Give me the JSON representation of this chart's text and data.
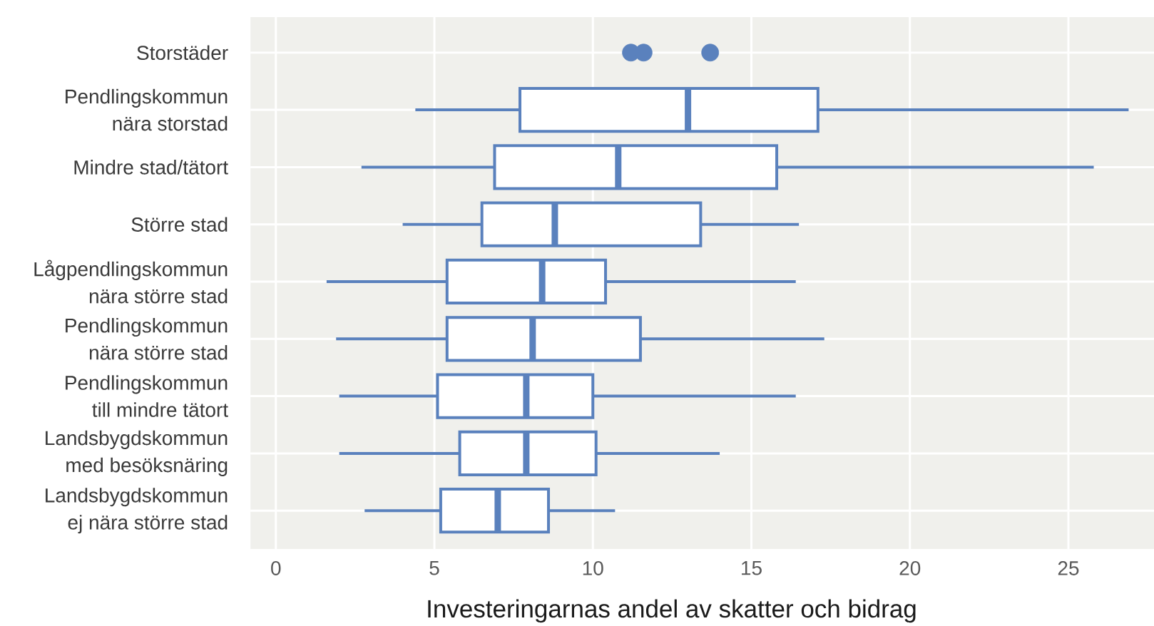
{
  "chart_data": {
    "type": "box",
    "orientation": "horizontal",
    "categories": [
      "Storstäder",
      "Pendlingskommun\nnära storstad",
      "Mindre stad/tätort",
      "Större stad",
      "Lågpendlingskommun\nnära större stad",
      "Pendlingskommun\nnära större stad",
      "Pendlingskommun\ntill mindre tätort",
      "Landsbygdskommun\nmed besöksnäring",
      "Landsbygdskommun\nej nära större stad"
    ],
    "color": "#5a81bd",
    "boxes": [
      null,
      {
        "low": 4.4,
        "q1": 7.7,
        "median": 13.0,
        "q3": 17.1,
        "high": 26.9
      },
      {
        "low": 2.7,
        "q1": 6.9,
        "median": 10.8,
        "q3": 15.8,
        "high": 25.8
      },
      {
        "low": 4.0,
        "q1": 6.5,
        "median": 8.8,
        "q3": 13.4,
        "high": 16.5
      },
      {
        "low": 1.6,
        "q1": 5.4,
        "median": 8.4,
        "q3": 10.4,
        "high": 16.4
      },
      {
        "low": 1.9,
        "q1": 5.4,
        "median": 8.1,
        "q3": 11.5,
        "high": 17.3
      },
      {
        "low": 2.0,
        "q1": 5.1,
        "median": 7.9,
        "q3": 10.0,
        "high": 16.4
      },
      {
        "low": 2.0,
        "q1": 5.8,
        "median": 7.9,
        "q3": 10.1,
        "high": 14.0
      },
      {
        "low": 2.8,
        "q1": 5.2,
        "median": 7.0,
        "q3": 8.6,
        "high": 10.7
      }
    ],
    "series": [
      {
        "type": "scatter",
        "color": "#5a81bd",
        "marker": "circle",
        "x": [
          "Storstäder",
          "Storstäder",
          "Storstäder"
        ],
        "values": [
          11.2,
          11.6,
          13.7
        ]
      }
    ],
    "xlim": [
      -0.8,
      27.7
    ],
    "xticks": [
      0,
      5,
      10,
      15,
      20,
      25
    ],
    "xlabel": "Investeringarnas andel av skatter och bidrag",
    "grid": true
  }
}
